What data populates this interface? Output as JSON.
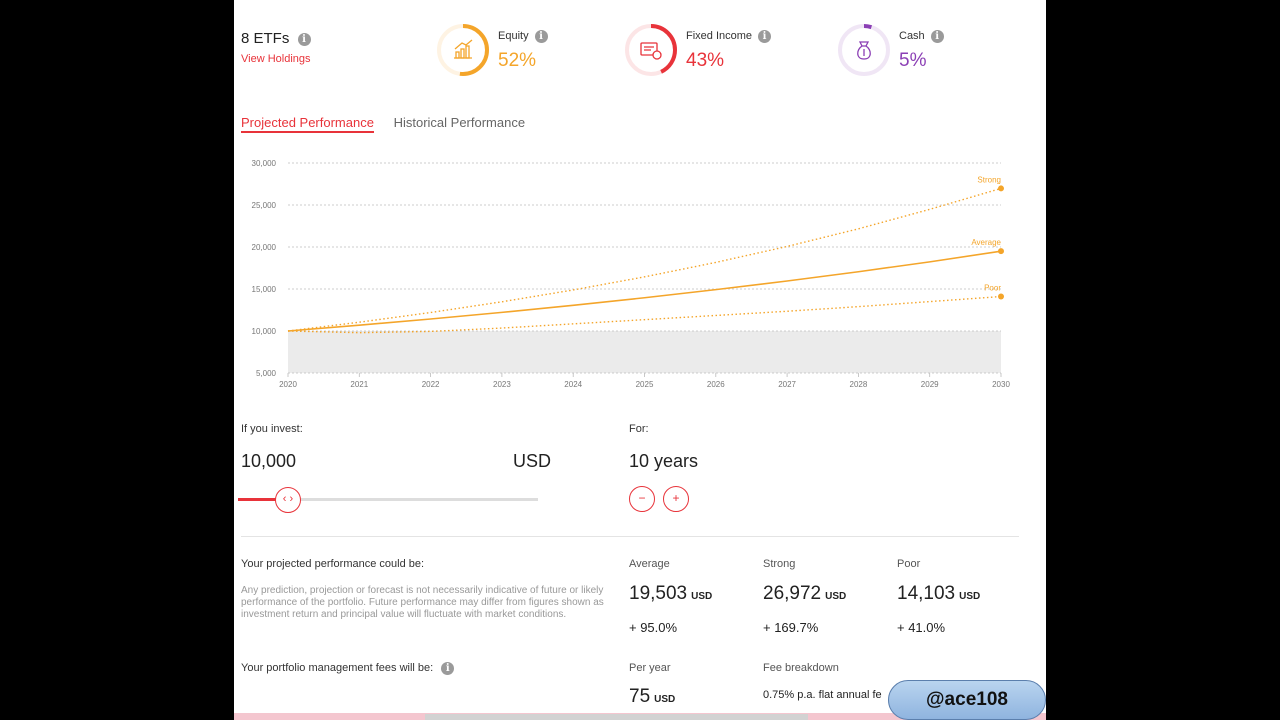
{
  "summary": {
    "etf_count": "8 ETFs",
    "info_glyph": "i",
    "view_holdings": "View Holdings"
  },
  "allocation": [
    {
      "label": "Equity",
      "value": "52%",
      "fraction": 0.52,
      "color": "#f4a52a",
      "icon": "chart-growth-icon"
    },
    {
      "label": "Fixed Income",
      "value": "43%",
      "fraction": 0.43,
      "color": "#e8333a",
      "icon": "bond-certificate-icon"
    },
    {
      "label": "Cash",
      "value": "5%",
      "fraction": 0.05,
      "color": "#8b3fb5",
      "icon": "money-bag-icon"
    }
  ],
  "tabs": {
    "projected": "Projected Performance",
    "historical": "Historical Performance"
  },
  "chart_data": {
    "type": "line",
    "x": [
      2020,
      2021,
      2022,
      2023,
      2024,
      2025,
      2026,
      2027,
      2028,
      2029,
      2030
    ],
    "xlim": [
      2020,
      2030
    ],
    "ylim": [
      5000,
      30000
    ],
    "yticks": [
      "30,000",
      "25,000",
      "20,000",
      "15,000",
      "10,000",
      "5,000"
    ],
    "ytick_values": [
      30000,
      25000,
      20000,
      15000,
      10000,
      5000
    ],
    "xticks": [
      "2020",
      "2021",
      "2022",
      "2023",
      "2024",
      "2025",
      "2026",
      "2027",
      "2028",
      "2029",
      "2030"
    ],
    "grid": true,
    "baseline_value": 10000,
    "series": [
      {
        "name": "Strong",
        "style": "dotted",
        "values": [
          10000,
          11046,
          12201,
          13477,
          14887,
          16444,
          18164,
          20064,
          22163,
          24481,
          26972
        ]
      },
      {
        "name": "Average",
        "style": "solid",
        "values": [
          10000,
          10690,
          11427,
          12216,
          13059,
          13960,
          14924,
          15953,
          17054,
          18231,
          19503
        ]
      },
      {
        "name": "Poor",
        "style": "dotted",
        "values": [
          10000,
          9800,
          9950,
          10350,
          10850,
          11350,
          11850,
          12350,
          12900,
          13500,
          14103
        ]
      }
    ],
    "color": "#f4a52a"
  },
  "invest": {
    "label": "If you invest:",
    "amount": "10,000",
    "currency": "USD",
    "slider_fraction": 0.1,
    "slider_glyph": "‹ ›"
  },
  "duration": {
    "label": "For:",
    "value": "10 years",
    "minus": "−",
    "plus": "+"
  },
  "projection": {
    "heading": "Your projected performance could be:",
    "disclaimer": "Any prediction, projection or forecast is not necessarily indicative of future or likely performance of the portfolio. Future performance may differ from figures shown as investment return and principal value will fluctuate with market conditions.",
    "stats": [
      {
        "label": "Average",
        "value": "19,503",
        "unit": "USD",
        "change": "+ 95.0%"
      },
      {
        "label": "Strong",
        "value": "26,972",
        "unit": "USD",
        "change": "+ 169.7%"
      },
      {
        "label": "Poor",
        "value": "14,103",
        "unit": "USD",
        "change": "+ 41.0%"
      }
    ]
  },
  "fees": {
    "heading": "Your portfolio management fees will be:",
    "per_year_label": "Per year",
    "per_year_value": "75",
    "per_year_unit": "USD",
    "breakdown_label": "Fee breakdown",
    "breakdown_text": "0.75% p.a. flat annual fe"
  },
  "watermark": "@ace108"
}
